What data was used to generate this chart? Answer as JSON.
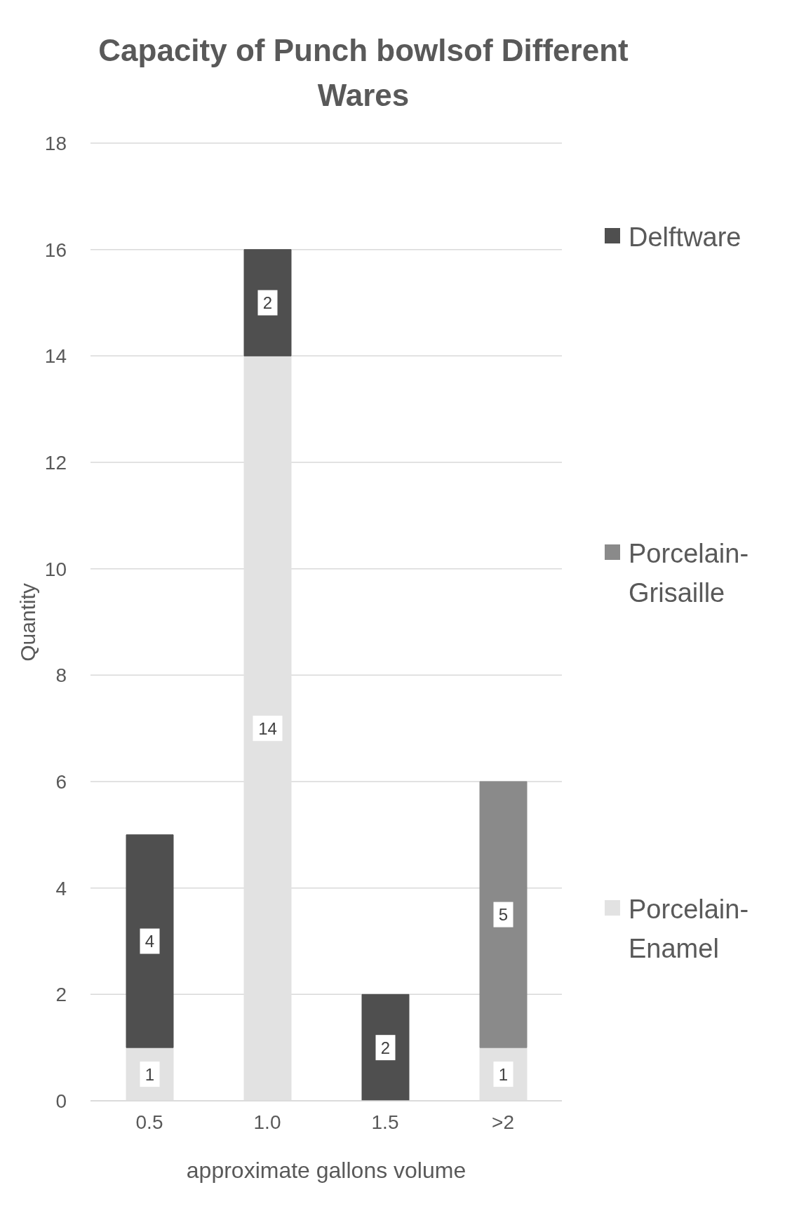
{
  "chart_data": {
    "type": "bar",
    "title": "Capacity of Punch bowlsof Different Wares",
    "xlabel": "approximate gallons volume",
    "ylabel": "Quantity",
    "categories": [
      "0.5",
      "1.0",
      "1.5",
      ">2"
    ],
    "series": [
      {
        "name": "Porcelain-Enamel",
        "color": "#e2e2e2",
        "values": [
          1,
          14,
          null,
          1
        ]
      },
      {
        "name": "Porcelain-Grisaille",
        "color": "#8a8a8a",
        "values": [
          null,
          null,
          null,
          5
        ]
      },
      {
        "name": "Delftware",
        "color": "#4f4f4f",
        "values": [
          4,
          2,
          2,
          null
        ]
      }
    ],
    "stacked": true,
    "ylim": [
      0,
      18
    ],
    "yticks": [
      0,
      2,
      4,
      6,
      8,
      10,
      12,
      14,
      16,
      18
    ],
    "grid": "y",
    "legend": "right",
    "data_labels": true
  }
}
